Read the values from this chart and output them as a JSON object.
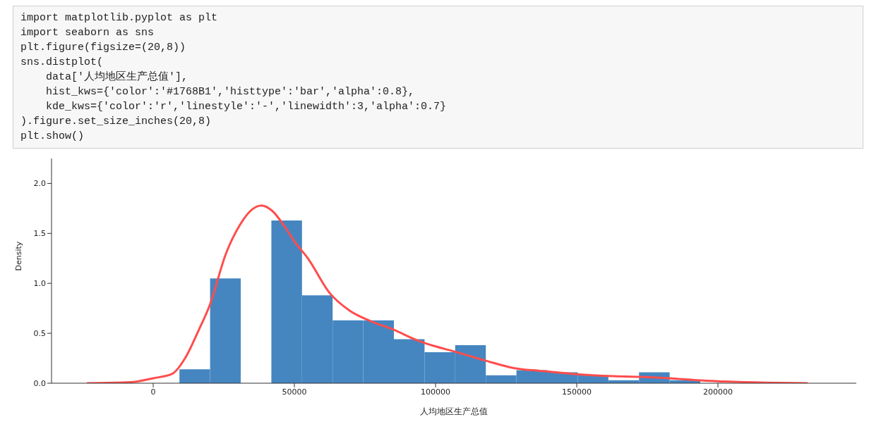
{
  "chart_data": {
    "type": "histogram",
    "annotations": [
      "import matplotlib.pyplot as plt",
      "import seaborn as sns",
      "plt.figure(figsize=(20,8))",
      "sns.distplot(",
      "    data['人均地区生产总值'],",
      "    hist_kws={'color':'#1768B1','histtype':'bar','alpha':0.8},",
      "    kde_kws={'color':'r','linestyle':'-','linewidth':3,'alpha':0.7}",
      ").figure.set_size_inches(20,8)",
      "plt.show()"
    ],
    "xlabel": "人均地区生产总值",
    "ylabel": "Density",
    "bins": [
      9300,
      20150,
      31000,
      41850,
      52700,
      63550,
      74400,
      85250,
      96100,
      106950,
      117800,
      128650,
      139500,
      150350,
      161200,
      172050,
      182900,
      193750
    ],
    "values": [
      0.14,
      1.05,
      null,
      1.63,
      0.88,
      0.63,
      0.63,
      0.44,
      0.31,
      0.38,
      0.08,
      0.13,
      0.11,
      0.08,
      0.03,
      0.11,
      0.03
    ],
    "color": "#4586c1",
    "series": [
      {
        "type": "line",
        "color": "#ff4d4d",
        "x": [
          -23500,
          -8000,
          0,
          6500,
          11300,
          16100,
          20000,
          25800,
          30600,
          35000,
          38400,
          42000,
          47000,
          50000,
          54800,
          62600,
          69400,
          77100,
          84800,
          93500,
          99800,
          106350,
          117200,
          128000,
          138800,
          150000,
          163200,
          176000,
          182800,
          192600,
          202400,
          217100,
          231800
        ],
        "values": [
          0.0,
          0.01,
          0.05,
          0.09,
          0.25,
          0.53,
          0.78,
          1.3,
          1.58,
          1.74,
          1.78,
          1.73,
          1.55,
          1.42,
          1.25,
          0.9,
          0.73,
          0.62,
          0.54,
          0.43,
          0.37,
          0.32,
          0.23,
          0.15,
          0.12,
          0.09,
          0.07,
          0.06,
          0.05,
          0.03,
          0.017,
          0.005,
          0.0
        ]
      }
    ],
    "xlim": [
      -36000,
      249000
    ],
    "xticks": [
      0,
      50000,
      100000,
      150000,
      200000
    ],
    "ylim": [
      0,
      2.25
    ],
    "yticks": [
      {
        "value": 0,
        "label": "0.0"
      },
      {
        "value": 0.5,
        "label": "0.5"
      },
      {
        "value": 1,
        "label": "1.0"
      },
      {
        "value": 1.5,
        "label": "1.5"
      },
      {
        "value": 2,
        "label": "2.0"
      }
    ],
    "grid": false,
    "marker": "none",
    "line_style": "solid"
  }
}
